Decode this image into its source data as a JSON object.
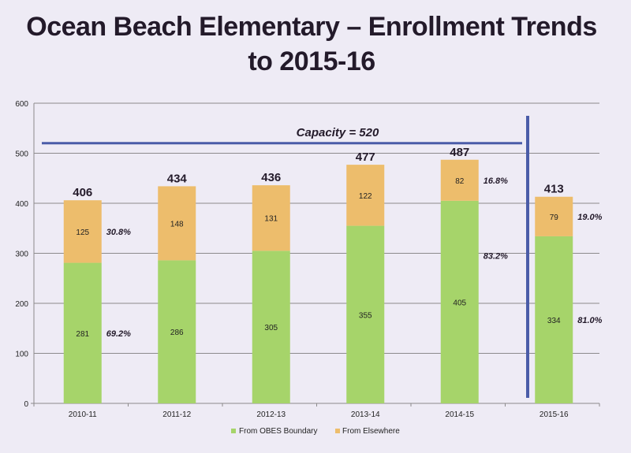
{
  "title_line1": "Ocean Beach Elementary – Enrollment Trends",
  "title_line2": "to 2015-16",
  "chart_data": {
    "type": "bar",
    "stacked": true,
    "title": "Ocean Beach Elementary – Enrollment Trends to 2015-16",
    "xlabel": "",
    "ylabel": "",
    "ylim": [
      0,
      600
    ],
    "yticks": [
      0,
      100,
      200,
      300,
      400,
      500,
      600
    ],
    "grid": true,
    "legend_position": "bottom",
    "categories": [
      "2010-11",
      "2011-12",
      "2012-13",
      "2013-14",
      "2014-15",
      "2015-16"
    ],
    "series": [
      {
        "name": "From OBES Boundary",
        "color": "#a6d46a",
        "values": [
          281,
          286,
          305,
          355,
          405,
          334
        ]
      },
      {
        "name": "From Elsewhere",
        "color": "#edbd6c",
        "values": [
          125,
          148,
          131,
          122,
          82,
          79
        ]
      }
    ],
    "totals": [
      406,
      434,
      436,
      477,
      487,
      413
    ],
    "percent_annotations": [
      {
        "category": "2010-11",
        "boundary": "69.2%",
        "elsewhere": "30.8%"
      },
      {
        "category": "2014-15",
        "boundary": "83.2%",
        "elsewhere": "16.8%"
      },
      {
        "category": "2015-16",
        "boundary": "81.0%",
        "elsewhere": "19.0%"
      }
    ],
    "capacity": {
      "label": "Capacity = 520",
      "value": 520,
      "color": "#4a5ca8"
    },
    "divider": {
      "between": [
        "2014-15",
        "2015-16"
      ],
      "color": "#4a5ca8"
    }
  }
}
